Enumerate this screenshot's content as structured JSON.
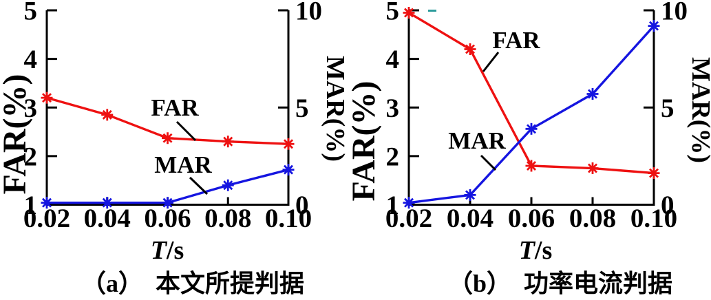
{
  "chart_data": [
    {
      "id": "a",
      "type": "line",
      "caption": "（a）　本文所提判据",
      "xlabel_var": "T",
      "xlabel_unit": "/s",
      "x_tick_labels": [
        "0.02",
        "0.04",
        "0.06",
        "0.08",
        "0.10"
      ],
      "x_values": [
        0.02,
        0.04,
        0.06,
        0.08,
        0.1
      ],
      "grid": false,
      "left_axis": {
        "label": "FAR(%)",
        "range": [
          1,
          5
        ],
        "tick_values": [
          1,
          2,
          3,
          4,
          5
        ],
        "tick_labels": [
          "1",
          "2",
          "3",
          "4",
          "5"
        ]
      },
      "right_axis": {
        "label": "MAR(%)",
        "range": [
          0,
          10
        ],
        "tick_values": [
          0,
          5,
          10
        ],
        "tick_labels": [
          "0",
          "5",
          "10"
        ]
      },
      "series": [
        {
          "name": "FAR",
          "axis": "left",
          "color": "#ee1111",
          "marker": "asterisk",
          "values": [
            3.2,
            2.85,
            2.37,
            2.3,
            2.25
          ]
        },
        {
          "name": "MAR",
          "axis": "right",
          "color": "#1515e0",
          "marker": "asterisk",
          "values": [
            0.1,
            0.1,
            0.1,
            1.0,
            1.8
          ]
        }
      ],
      "annotations": [
        {
          "text": "FAR",
          "series": "FAR"
        },
        {
          "text": "MAR",
          "series": "MAR"
        }
      ]
    },
    {
      "id": "b",
      "type": "line",
      "caption": "（b）　功率电流判据",
      "xlabel_var": "T",
      "xlabel_unit": "/s",
      "x_tick_labels": [
        "0.02",
        "0.04",
        "0.06",
        "0.08",
        "0.10"
      ],
      "x_values": [
        0.02,
        0.04,
        0.06,
        0.08,
        0.1
      ],
      "grid": false,
      "left_axis": {
        "label": "FAR(%)",
        "range": [
          1,
          5
        ],
        "tick_values": [
          1,
          2,
          3,
          4,
          5
        ],
        "tick_labels": [
          "1",
          "2",
          "3",
          "4",
          "5"
        ]
      },
      "right_axis": {
        "label": "MAR(%)",
        "range": [
          0,
          10
        ],
        "tick_values": [
          0,
          5,
          10
        ],
        "tick_labels": [
          "0",
          "5",
          "10"
        ]
      },
      "series": [
        {
          "name": "FAR",
          "axis": "left",
          "color": "#ee1111",
          "marker": "asterisk",
          "values": [
            4.95,
            4.2,
            1.8,
            1.75,
            1.65
          ]
        },
        {
          "name": "MAR",
          "axis": "right",
          "color": "#1515e0",
          "marker": "asterisk",
          "values": [
            0.1,
            0.5,
            3.9,
            5.7,
            9.2
          ]
        }
      ],
      "annotations": [
        {
          "text": "FAR",
          "series": "FAR"
        },
        {
          "text": "MAR",
          "series": "MAR"
        }
      ],
      "stray_mark_color": "#2d9c9c"
    }
  ],
  "colors": {
    "axis": "#000000",
    "annotation": "#000000",
    "background": "#ffffff"
  }
}
